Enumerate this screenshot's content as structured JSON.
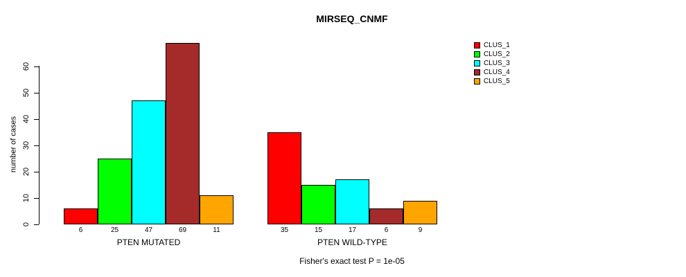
{
  "title": "MIRSEQ_CNMF",
  "y_axis": {
    "label": "number of cases",
    "ticks": [
      0,
      10,
      20,
      30,
      40,
      50,
      60
    ]
  },
  "caption": "Fisher's exact test P = 1e-05",
  "legend": {
    "items": [
      {
        "label": "CLUS_1",
        "color": "#FF0000"
      },
      {
        "label": "CLUS_2",
        "color": "#00FF00"
      },
      {
        "label": "CLUS_3",
        "color": "#00FFFF"
      },
      {
        "label": "CLUS_4",
        "color": "#A52A2A"
      },
      {
        "label": "CLUS_5",
        "color": "#FFA500"
      }
    ]
  },
  "chart_data": {
    "type": "bar",
    "title": "MIRSEQ_CNMF",
    "ylabel": "number of cases",
    "xlabel": "",
    "ylim": [
      0,
      69
    ],
    "yticks": [
      0,
      10,
      20,
      30,
      40,
      50,
      60
    ],
    "grid": false,
    "legend_position": "right",
    "bar_value_labels_shown": true,
    "series_names": [
      "CLUS_1",
      "CLUS_2",
      "CLUS_3",
      "CLUS_4",
      "CLUS_5"
    ],
    "series_colors": [
      "#FF0000",
      "#00FF00",
      "#00FFFF",
      "#A52A2A",
      "#FFA500"
    ],
    "groups": [
      {
        "label": "PTEN MUTATED",
        "values": [
          6,
          25,
          47,
          69,
          11
        ]
      },
      {
        "label": "PTEN WILD-TYPE",
        "values": [
          35,
          15,
          17,
          6,
          9
        ]
      }
    ],
    "annotation": "Fisher's exact test P = 1e-05"
  }
}
